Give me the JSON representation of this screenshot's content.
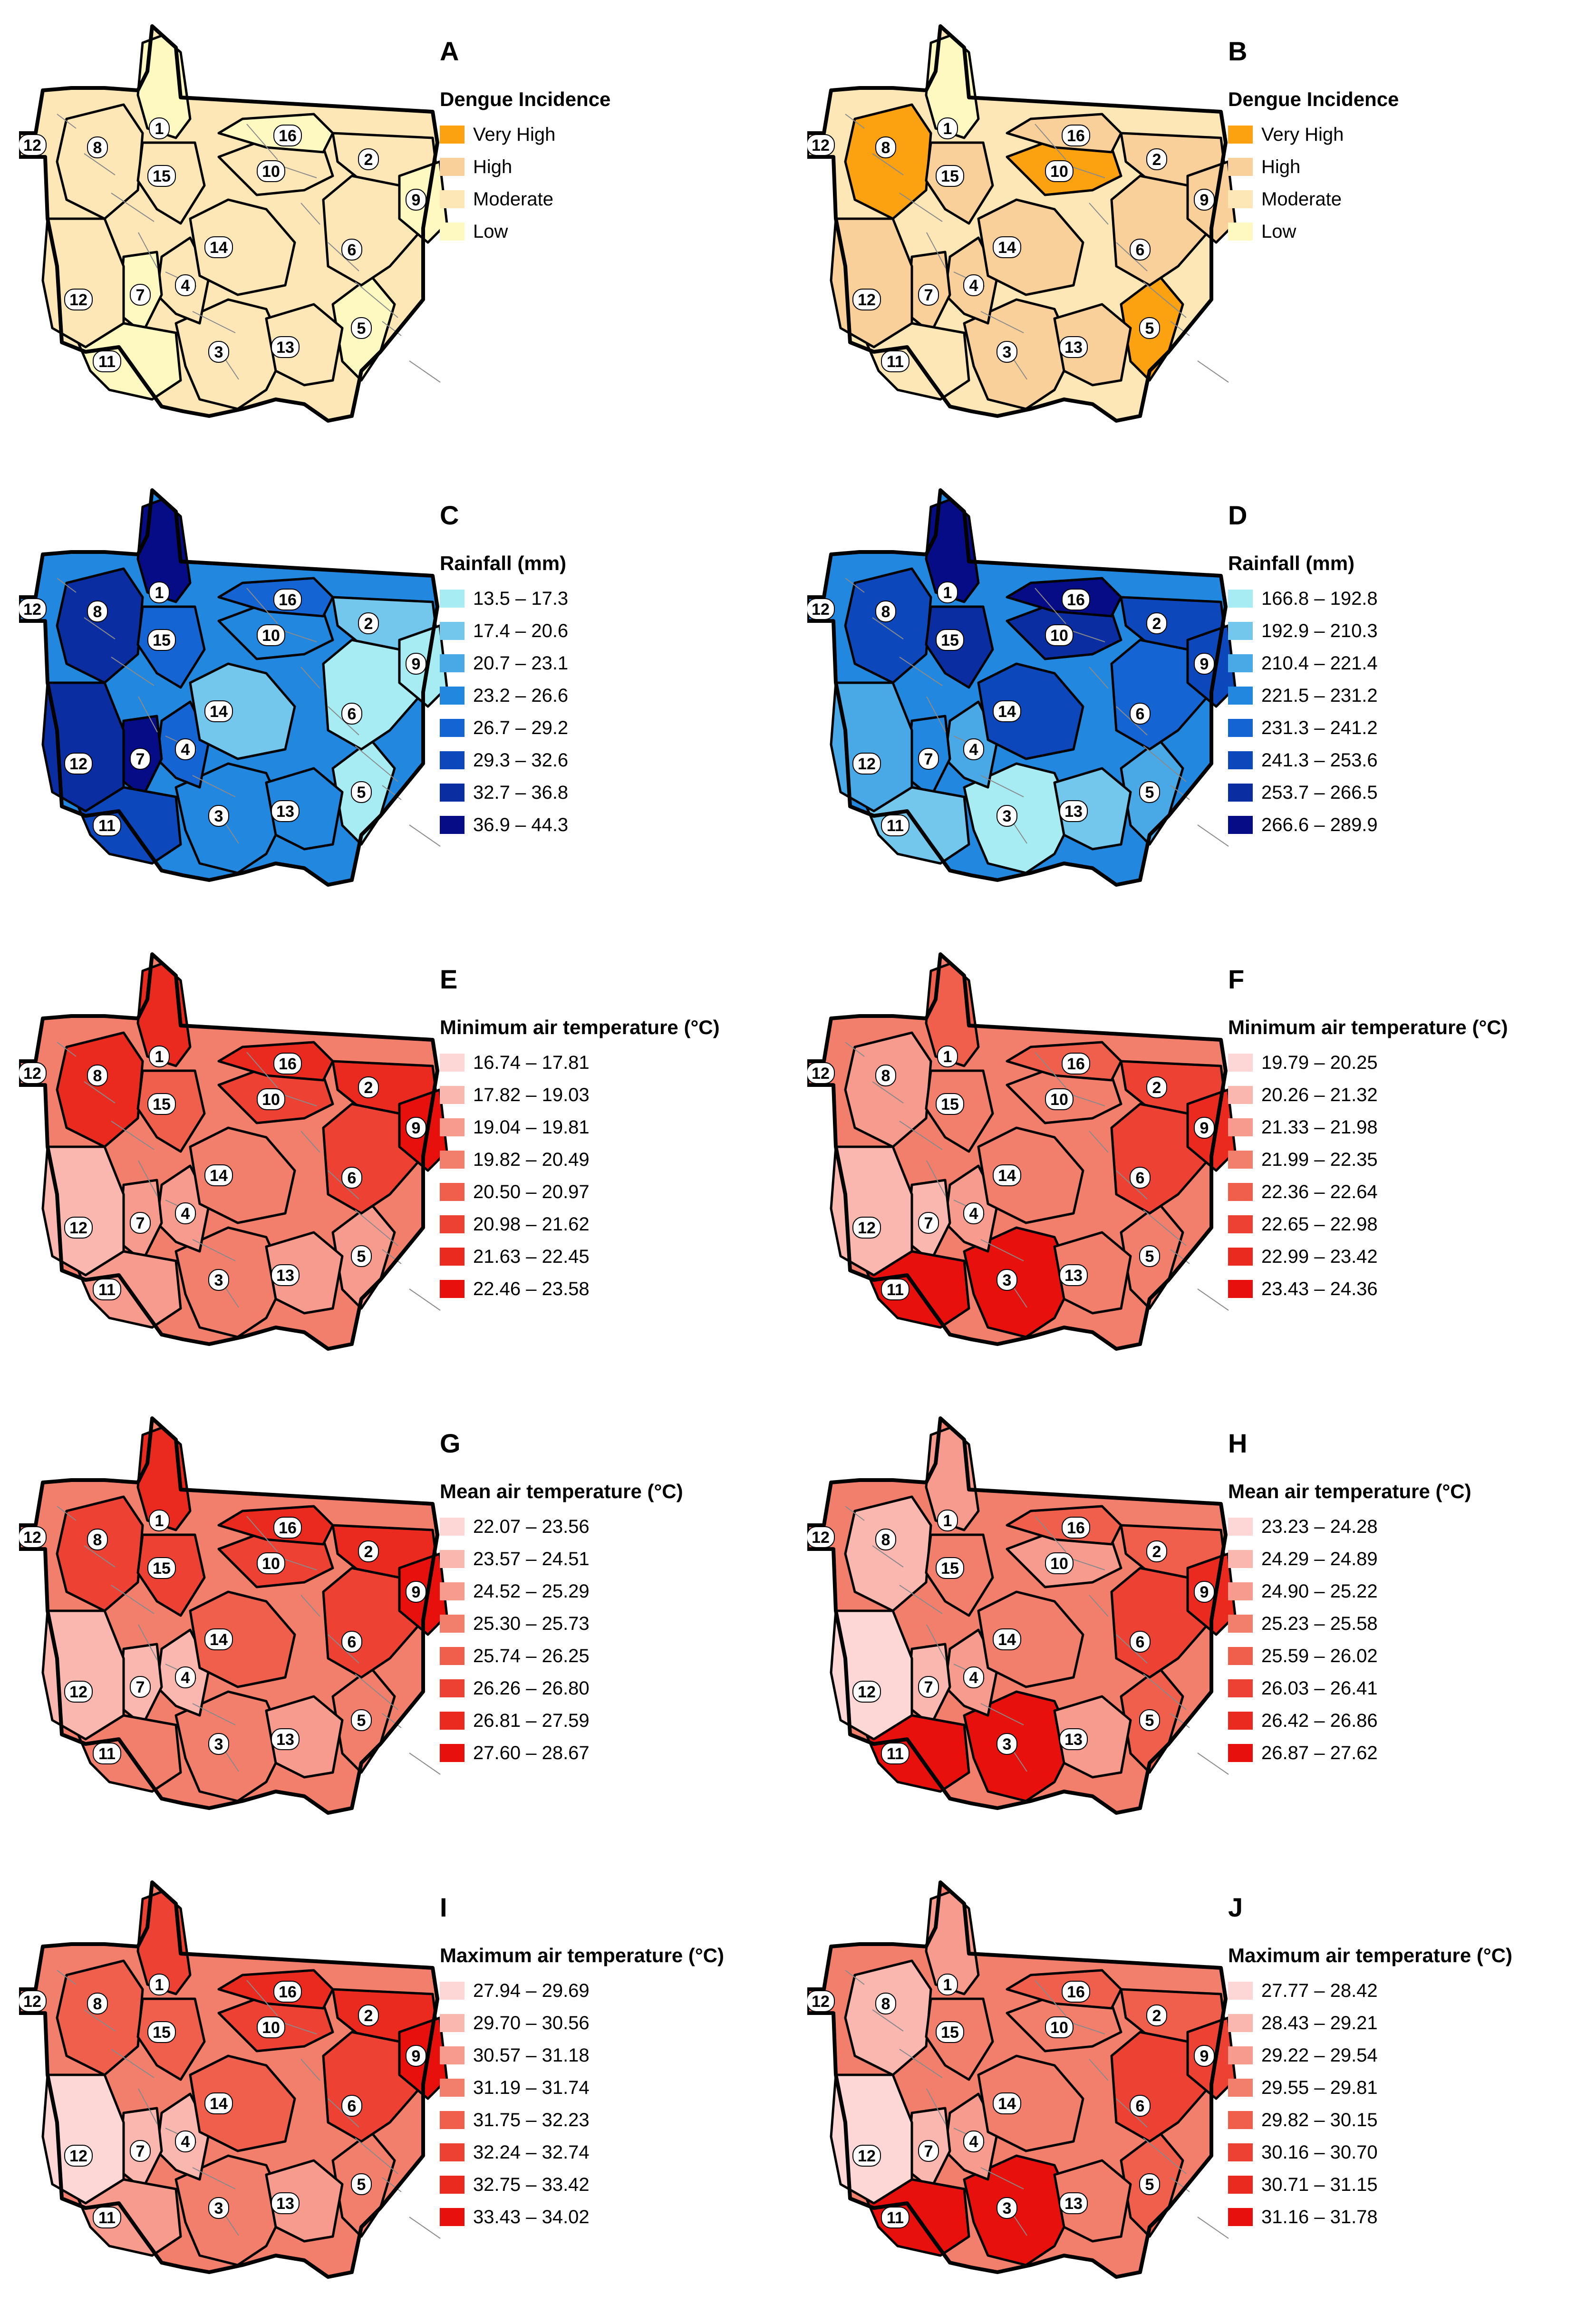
{
  "figure": {
    "panels": [
      {
        "letter": "A",
        "legend_title": "Dengue Incidence",
        "legend": [
          "Very High",
          "High",
          "Moderate",
          "Low"
        ],
        "colors": [
          "#fca10f",
          "#fad09a",
          "#fde7b6",
          "#fdf9c0"
        ],
        "region_classes": [
          3,
          2,
          2,
          2,
          3,
          2,
          3,
          2,
          3,
          2,
          3,
          2,
          2,
          2,
          2,
          3
        ]
      },
      {
        "letter": "B",
        "legend_title": "Dengue Incidence",
        "legend": [
          "Very High",
          "High",
          "Moderate",
          "Low"
        ],
        "colors": [
          "#fca10f",
          "#fad09a",
          "#fde7b6",
          "#fdf9c0"
        ],
        "region_classes": [
          3,
          1,
          1,
          1,
          0,
          1,
          1,
          0,
          1,
          0,
          2,
          1,
          1,
          1,
          1,
          1
        ]
      },
      {
        "letter": "C",
        "legend_title": "Rainfall (mm)",
        "legend": [
          "13.5 – 17.3",
          "17.4 – 20.6",
          "20.7 – 23.1",
          "23.2 – 26.6",
          "26.7 – 29.2",
          "29.3 – 32.6",
          "32.7 – 36.8",
          "36.9 – 44.3"
        ],
        "colors": [
          "#a6ecf2",
          "#74c7ec",
          "#48a9e6",
          "#2288df",
          "#1465d3",
          "#0d47bc",
          "#0a2ea2",
          "#050c85"
        ],
        "region_classes": [
          7,
          1,
          3,
          4,
          0,
          0,
          7,
          6,
          0,
          3,
          5,
          6,
          3,
          1,
          4,
          4
        ]
      },
      {
        "letter": "D",
        "legend_title": "Rainfall (mm)",
        "legend": [
          "166.8 – 192.8",
          "192.9 – 210.3",
          "210.4 – 221.4",
          "221.5 – 231.2",
          "231.3 – 241.2",
          "241.3 – 253.6",
          "253.7 – 266.5",
          "266.6 – 289.9"
        ],
        "colors": [
          "#a6ecf2",
          "#74c7ec",
          "#48a9e6",
          "#2288df",
          "#1465d3",
          "#0d47bc",
          "#0a2ea2",
          "#050c85"
        ],
        "region_classes": [
          7,
          5,
          0,
          2,
          2,
          4,
          3,
          5,
          5,
          6,
          1,
          2,
          1,
          5,
          6,
          7
        ]
      },
      {
        "letter": "E",
        "legend_title": "Minimum air temperature (°C)",
        "legend": [
          "16.74 – 17.81",
          "17.82 – 19.03",
          "19.04 – 19.81",
          "19.82 – 20.49",
          "20.50 – 20.97",
          "20.98 – 21.62",
          "21.63 – 22.45",
          "22.46 – 23.58"
        ],
        "colors": [
          "#fcd7d6",
          "#f9b7b0",
          "#f69b8d",
          "#f27e6c",
          "#ef5f4c",
          "#ec4133",
          "#ea2a1e",
          "#e8100c"
        ],
        "region_classes": [
          6,
          6,
          3,
          2,
          2,
          5,
          2,
          6,
          7,
          5,
          2,
          1,
          2,
          3,
          4,
          6
        ]
      },
      {
        "letter": "F",
        "legend_title": "Minimum air temperature (°C)",
        "legend": [
          "19.79 – 20.25",
          "20.26 – 21.32",
          "21.33 – 21.98",
          "21.99 – 22.35",
          "22.36 – 22.64",
          "22.65 – 22.98",
          "22.99 – 23.42",
          "23.43 – 24.36"
        ],
        "colors": [
          "#fcd7d6",
          "#f9b7b0",
          "#f69b8d",
          "#f27e6c",
          "#ef5f4c",
          "#ec4133",
          "#ea2a1e",
          "#e8100c"
        ],
        "region_classes": [
          4,
          5,
          7,
          2,
          3,
          5,
          1,
          2,
          6,
          3,
          7,
          1,
          3,
          3,
          3,
          4
        ]
      },
      {
        "letter": "G",
        "legend_title": "Mean air temperature (°C)",
        "legend": [
          "22.07 – 23.56",
          "23.57 – 24.51",
          "24.52 – 25.29",
          "25.30 – 25.73",
          "25.74 – 26.25",
          "26.26 – 26.80",
          "26.81 – 27.59",
          "27.60 – 28.67"
        ],
        "colors": [
          "#fcd7d6",
          "#f9b7b0",
          "#f69b8d",
          "#f27e6c",
          "#ef5f4c",
          "#ec4133",
          "#ea2a1e",
          "#e8100c"
        ],
        "region_classes": [
          6,
          6,
          3,
          1,
          3,
          5,
          1,
          5,
          7,
          5,
          3,
          1,
          2,
          4,
          5,
          6
        ]
      },
      {
        "letter": "H",
        "legend_title": "Mean air temperature (°C)",
        "legend": [
          "23.23 – 24.28",
          "24.29 – 24.89",
          "24.90 – 25.22",
          "25.23 – 25.58",
          "25.59 – 26.02",
          "26.03 – 26.41",
          "26.42 – 26.86",
          "26.87 – 27.62"
        ],
        "colors": [
          "#fcd7d6",
          "#f9b7b0",
          "#f69b8d",
          "#f27e6c",
          "#ef5f4c",
          "#ec4133",
          "#ea2a1e",
          "#e8100c"
        ],
        "region_classes": [
          2,
          4,
          7,
          2,
          4,
          5,
          1,
          1,
          6,
          2,
          7,
          0,
          2,
          3,
          3,
          4
        ]
      },
      {
        "letter": "I",
        "legend_title": "Maximum air temperature (°C)",
        "legend": [
          "27.94 – 29.69",
          "29.70 – 30.56",
          "30.57 – 31.18",
          "31.19 – 31.74",
          "31.75 – 32.23",
          "32.24 – 32.74",
          "32.75 – 33.42",
          "33.43 – 34.02"
        ],
        "colors": [
          "#fcd7d6",
          "#f9b7b0",
          "#f69b8d",
          "#f27e6c",
          "#ef5f4c",
          "#ec4133",
          "#ea2a1e",
          "#e8100c"
        ],
        "region_classes": [
          5,
          6,
          3,
          1,
          3,
          5,
          1,
          4,
          7,
          5,
          2,
          0,
          2,
          4,
          4,
          6
        ]
      },
      {
        "letter": "J",
        "legend_title": "Maximum air temperature (°C)",
        "legend": [
          "27.77 – 28.42",
          "28.43 – 29.21",
          "29.22 – 29.54",
          "29.55 – 29.81",
          "29.82 – 30.15",
          "30.16 – 30.70",
          "30.71 – 31.15",
          "31.16 – 31.78"
        ],
        "colors": [
          "#fcd7d6",
          "#f9b7b0",
          "#f69b8d",
          "#f27e6c",
          "#ef5f4c",
          "#ec4133",
          "#ea2a1e",
          "#e8100c"
        ],
        "region_classes": [
          2,
          4,
          7,
          2,
          4,
          5,
          1,
          1,
          5,
          3,
          7,
          0,
          3,
          3,
          3,
          4
        ]
      }
    ],
    "region_numbers": [
      "1",
      "2",
      "3",
      "4",
      "5",
      "6",
      "7",
      "8",
      "9",
      "10",
      "11",
      "12",
      "13",
      "14",
      "15",
      "16"
    ],
    "duplicate_label": "12"
  }
}
